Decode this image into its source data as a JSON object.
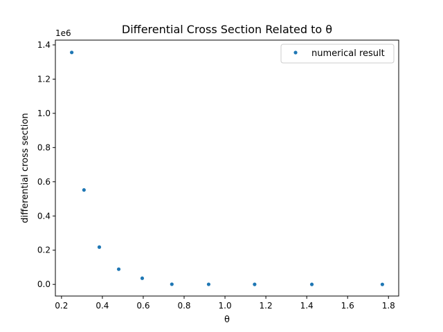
{
  "chart_data": {
    "type": "scatter",
    "title": "Differential Cross Section Related to θ",
    "xlabel": "θ",
    "ylabel": "differential cross section",
    "y_offset_label": "1e6",
    "xlim": [
      0.17,
      1.85
    ],
    "ylim": [
      -0.068,
      1.428
    ],
    "y_scale_factor": 1000000,
    "x_ticks": [
      {
        "value": 0.2,
        "label": "0.2"
      },
      {
        "value": 0.4,
        "label": "0.4"
      },
      {
        "value": 0.6,
        "label": "0.6"
      },
      {
        "value": 0.8,
        "label": "0.8"
      },
      {
        "value": 1.0,
        "label": "1.0"
      },
      {
        "value": 1.2,
        "label": "1.2"
      },
      {
        "value": 1.4,
        "label": "1.4"
      },
      {
        "value": 1.6,
        "label": "1.6"
      },
      {
        "value": 1.8,
        "label": "1.8"
      }
    ],
    "y_ticks": [
      {
        "value": 0.0,
        "label": "0.0"
      },
      {
        "value": 0.2,
        "label": "0.2"
      },
      {
        "value": 0.4,
        "label": "0.4"
      },
      {
        "value": 0.6,
        "label": "0.6"
      },
      {
        "value": 0.8,
        "label": "0.8"
      },
      {
        "value": 1.0,
        "label": "1.0"
      },
      {
        "value": 1.2,
        "label": "1.2"
      },
      {
        "value": 1.4,
        "label": "1.4"
      }
    ],
    "grid": false,
    "legend_position": "top-right",
    "series": [
      {
        "name": "numerical result",
        "color": "#1f77b4",
        "marker": "dot",
        "x": [
          0.25,
          0.31,
          0.385,
          0.48,
          0.595,
          0.74,
          0.92,
          1.145,
          1.425,
          1.77
        ],
        "y": [
          1356000,
          552000,
          218000,
          89000,
          36000,
          1000,
          500,
          200,
          100,
          50
        ]
      }
    ]
  }
}
